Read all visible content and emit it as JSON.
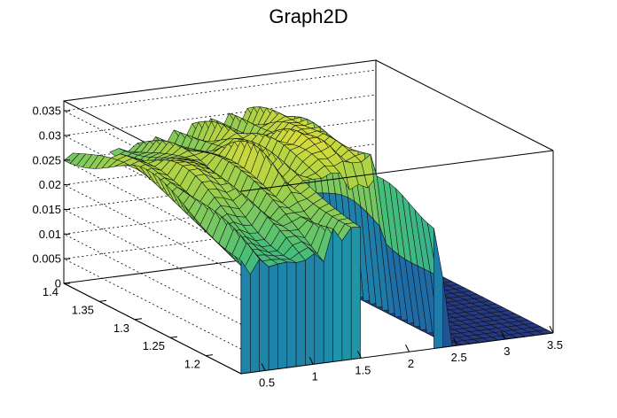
{
  "chart_data": {
    "type": "surface",
    "title": "Graph2D",
    "xlabel": "",
    "ylabel": "",
    "zlabel": "",
    "xlim": [
      0.25,
      3.5
    ],
    "ylim": [
      1.15,
      1.4
    ],
    "zlim": [
      0,
      0.037
    ],
    "x_ticks": [
      "0.5",
      "1",
      "1.5",
      "2",
      "2.5",
      "3",
      "3.5"
    ],
    "y_ticks": [
      "1.2",
      "1.25",
      "1.3",
      "1.35",
      "1.4"
    ],
    "z_ticks": [
      "0",
      "0.005",
      "0.01",
      "0.015",
      "0.02",
      "0.025",
      "0.03",
      "0.035"
    ],
    "grid": true,
    "colormap": "viridis-like (blue to yellow)",
    "surface_description_values": {
      "plateau_height_left": 0.025,
      "peak_height": 0.036,
      "floor_height": 0,
      "gap_regions": [
        {
          "x_range": [
            0.35,
            0.65
          ],
          "y_range": [
            1.35,
            1.4
          ]
        },
        {
          "x_range": [
            1.55,
            2.2
          ],
          "y_range": [
            1.15,
            1.23
          ]
        }
      ]
    }
  }
}
